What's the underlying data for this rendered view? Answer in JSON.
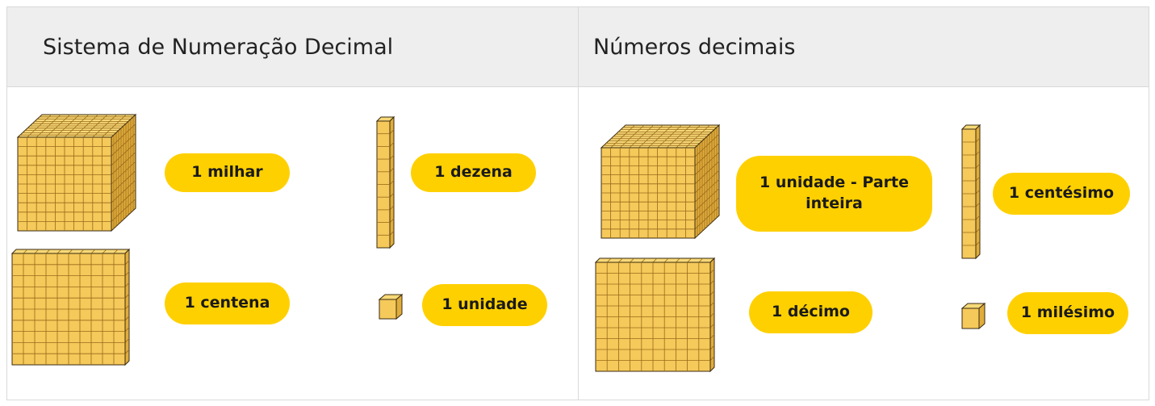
{
  "table": {
    "columns": [
      {
        "header": "Sistema de Numeração Decimal",
        "items": [
          "1 milhar",
          "1 dezena",
          "1 centena",
          "1 unidade"
        ]
      },
      {
        "header": "Números decimais",
        "items": [
          "1 unidade - Parte inteira",
          "1 centésimo",
          "1 décimo",
          "1 milésimo"
        ]
      }
    ]
  }
}
